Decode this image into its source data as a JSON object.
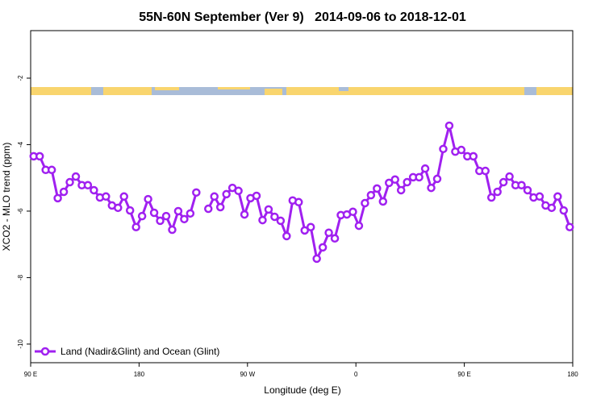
{
  "chart_data": {
    "type": "line",
    "title": "55N-60N September (Ver 9)   2014-09-06 to 2018-12-01",
    "xlabel": "Longitude (deg E)",
    "ylabel": "XCO2 - MLO trend (ppm)",
    "x": [
      92.5,
      97.5,
      102.5,
      107.5,
      112.5,
      117.5,
      122.5,
      127.5,
      132.5,
      137.5,
      142.5,
      147.5,
      152.5,
      157.5,
      162.5,
      167.5,
      172.5,
      177.5,
      182.5,
      187.5,
      192.5,
      197.5,
      202.5,
      207.5,
      212.5,
      217.5,
      222.5,
      227.5,
      232.5,
      237.5,
      242.5,
      247.5,
      252.5,
      257.5,
      262.5,
      267.5,
      272.5,
      277.5,
      282.5,
      287.5,
      292.5,
      297.5,
      302.5,
      307.5,
      312.5,
      317.5,
      322.5,
      327.5,
      332.5,
      337.5,
      342.5,
      347.5,
      352.5,
      357.5,
      362.5,
      367.5,
      372.5,
      377.5,
      382.5,
      387.5,
      392.5,
      397.5,
      402.5,
      407.5,
      412.5,
      417.5,
      422.5,
      427.5,
      432.5,
      437.5,
      442.5,
      447.5,
      452.5,
      457.5,
      462.5,
      467.5,
      472.5,
      477.5,
      482.5,
      487.5,
      492.5,
      497.5,
      502.5,
      507.5,
      512.5,
      517.5,
      522.5,
      527.5,
      532.5,
      537.5
    ],
    "series": [
      {
        "name": "Land (Nadir&Glint) and Ocean (Glint)",
        "color": "#a020f0",
        "values": [
          -4.35,
          -4.35,
          -4.76,
          -4.76,
          -5.61,
          -5.42,
          -5.13,
          -4.96,
          -5.22,
          -5.22,
          -5.37,
          -5.59,
          -5.56,
          -5.83,
          -5.9,
          -5.56,
          -5.98,
          -6.48,
          -6.15,
          -5.64,
          -6.05,
          -6.29,
          -6.15,
          -6.56,
          -6.0,
          -6.24,
          -6.07,
          -5.44,
          null,
          -5.93,
          -5.56,
          -5.88,
          -5.49,
          -5.3,
          -5.39,
          -6.1,
          -5.61,
          -5.54,
          -6.27,
          -5.95,
          -6.17,
          -6.29,
          -6.75,
          -5.68,
          -5.73,
          -6.58,
          -6.48,
          -7.43,
          -7.09,
          -6.65,
          -6.82,
          -6.12,
          -6.1,
          -6.02,
          -6.44,
          -5.76,
          -5.52,
          -5.32,
          -5.71,
          -5.15,
          -5.05,
          -5.37,
          -5.13,
          -4.98,
          -4.98,
          -4.72,
          -5.3,
          -5.03,
          -4.13,
          -3.43,
          -4.21,
          -4.16,
          -4.35,
          -4.35,
          -4.79,
          -4.79,
          -5.59,
          -5.42,
          -5.13,
          -4.96,
          -5.22,
          -5.22,
          -5.37,
          -5.59,
          -5.56,
          -5.83,
          -5.9,
          -5.56,
          -5.98,
          -6.48
        ]
      }
    ],
    "xlim": [
      90,
      540
    ],
    "xticks": [
      {
        "value": 90,
        "label": "90 E"
      },
      180,
      {
        "value": 270,
        "label": "90 W"
      },
      {
        "value": 360,
        "label": "0"
      },
      {
        "value": 450,
        "label": "90 E"
      },
      {
        "value": 540,
        "label": "180"
      }
    ],
    "ylim": [
      -10.56,
      -0.57
    ],
    "yticks": [
      -10,
      -8,
      -6,
      -4,
      -2
    ],
    "legend": "bottom-left"
  }
}
